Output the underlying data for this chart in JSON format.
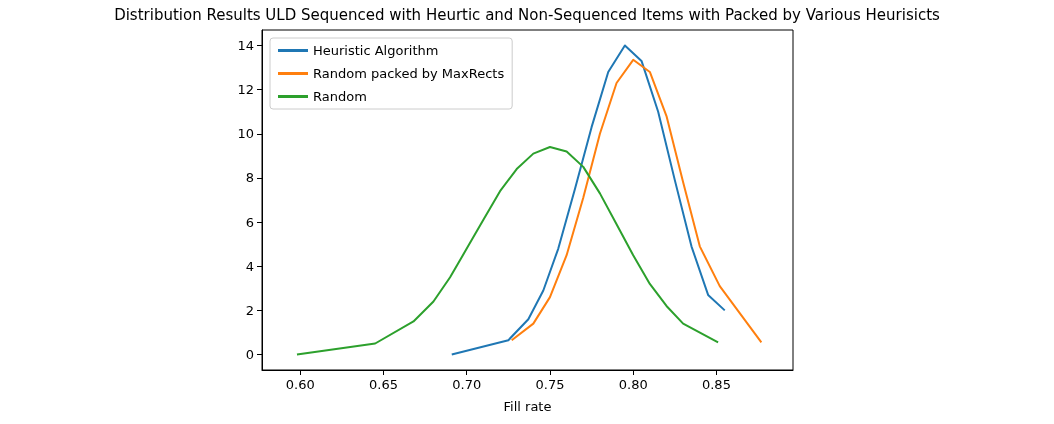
{
  "chart_data": {
    "type": "line",
    "title": "Distribution Results ULD Sequenced with Heurtic and Non-Sequenced Items with Packed by Various Heurisicts",
    "xlabel": "Fill rate",
    "xlim": [
      0.577,
      0.896
    ],
    "xticks": [
      {
        "value": 0.6,
        "label": "0.60"
      },
      {
        "value": 0.65,
        "label": "0.65"
      },
      {
        "value": 0.7,
        "label": "0.70"
      },
      {
        "value": 0.75,
        "label": "0.75"
      },
      {
        "value": 0.8,
        "label": "0.80"
      },
      {
        "value": 0.85,
        "label": "0.85"
      }
    ],
    "ylim": [
      -0.7,
      14.7
    ],
    "yticks": [
      0,
      2,
      4,
      6,
      8,
      10,
      12,
      14
    ],
    "grid": false,
    "legend": "top left",
    "marker": "none",
    "line_style": "solid",
    "series": [
      {
        "name": "Heuristic Algorithm",
        "color": "#1f77b4",
        "x": [
          0.691,
          0.725,
          0.737,
          0.746,
          0.755,
          0.765,
          0.775,
          0.785,
          0.795,
          0.805,
          0.815,
          0.825,
          0.835,
          0.845,
          0.855
        ],
        "values": [
          0,
          0.65,
          1.6,
          2.9,
          4.8,
          7.5,
          10.3,
          12.8,
          14.0,
          13.3,
          11.0,
          7.9,
          4.9,
          2.7,
          2.0
        ]
      },
      {
        "name": "Random packed by MaxRects",
        "color": "#ff7f0e",
        "x": [
          0.727,
          0.74,
          0.75,
          0.76,
          0.77,
          0.78,
          0.79,
          0.8,
          0.81,
          0.82,
          0.83,
          0.84,
          0.852,
          0.877
        ],
        "values": [
          0.65,
          1.4,
          2.6,
          4.5,
          7.1,
          10.0,
          12.3,
          13.35,
          12.8,
          10.8,
          7.8,
          4.9,
          3.1,
          0.55
        ]
      },
      {
        "name": "Random",
        "color": "#2ca02c",
        "x": [
          0.598,
          0.645,
          0.668,
          0.68,
          0.69,
          0.7,
          0.71,
          0.72,
          0.73,
          0.74,
          0.75,
          0.76,
          0.77,
          0.78,
          0.79,
          0.8,
          0.81,
          0.82,
          0.83,
          0.851
        ],
        "values": [
          0,
          0.5,
          1.5,
          2.4,
          3.5,
          4.8,
          6.1,
          7.4,
          8.4,
          9.1,
          9.4,
          9.2,
          8.5,
          7.3,
          5.9,
          4.5,
          3.2,
          2.2,
          1.4,
          0.55
        ]
      }
    ]
  }
}
